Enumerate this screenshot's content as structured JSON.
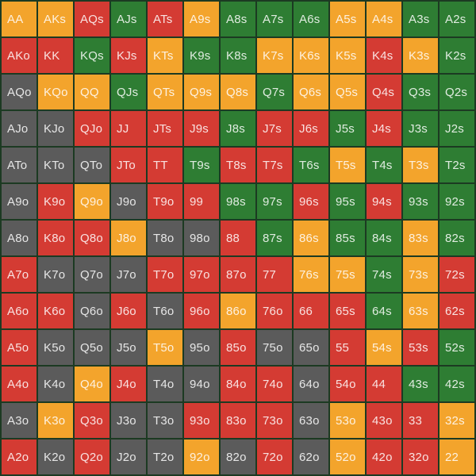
{
  "range_grid": {
    "type": "heatmap",
    "description": "13x13 poker starting-hand range matrix",
    "rows": 13,
    "cols": 13,
    "rank_order": [
      "A",
      "K",
      "Q",
      "J",
      "T",
      "9",
      "8",
      "7",
      "6",
      "5",
      "4",
      "3",
      "2"
    ],
    "palette": {
      "orange": "#F3A42C",
      "red": "#D43B33",
      "green": "#2E7D33",
      "gray": "#5B5B5B"
    },
    "background_color": "#1C3A22",
    "text_color": "rgba(255,255,255,0.85)",
    "cells": [
      [
        [
          "AA",
          "orange"
        ],
        [
          "AKs",
          "orange"
        ],
        [
          "AQs",
          "red"
        ],
        [
          "AJs",
          "green"
        ],
        [
          "ATs",
          "red"
        ],
        [
          "A9s",
          "orange"
        ],
        [
          "A8s",
          "green"
        ],
        [
          "A7s",
          "green"
        ],
        [
          "A6s",
          "green"
        ],
        [
          "A5s",
          "orange"
        ],
        [
          "A4s",
          "orange"
        ],
        [
          "A3s",
          "green"
        ],
        [
          "A2s",
          "green"
        ]
      ],
      [
        [
          "AKo",
          "red"
        ],
        [
          "KK",
          "red"
        ],
        [
          "KQs",
          "green"
        ],
        [
          "KJs",
          "red"
        ],
        [
          "KTs",
          "orange"
        ],
        [
          "K9s",
          "green"
        ],
        [
          "K8s",
          "green"
        ],
        [
          "K7s",
          "orange"
        ],
        [
          "K6s",
          "orange"
        ],
        [
          "K5s",
          "orange"
        ],
        [
          "K4s",
          "red"
        ],
        [
          "K3s",
          "orange"
        ],
        [
          "K2s",
          "green"
        ]
      ],
      [
        [
          "AQo",
          "gray"
        ],
        [
          "KQo",
          "orange"
        ],
        [
          "QQ",
          "orange"
        ],
        [
          "QJs",
          "green"
        ],
        [
          "QTs",
          "orange"
        ],
        [
          "Q9s",
          "orange"
        ],
        [
          "Q8s",
          "orange"
        ],
        [
          "Q7s",
          "green"
        ],
        [
          "Q6s",
          "orange"
        ],
        [
          "Q5s",
          "orange"
        ],
        [
          "Q4s",
          "red"
        ],
        [
          "Q3s",
          "green"
        ],
        [
          "Q2s",
          "green"
        ]
      ],
      [
        [
          "AJo",
          "gray"
        ],
        [
          "KJo",
          "gray"
        ],
        [
          "QJo",
          "red"
        ],
        [
          "JJ",
          "red"
        ],
        [
          "JTs",
          "red"
        ],
        [
          "J9s",
          "red"
        ],
        [
          "J8s",
          "green"
        ],
        [
          "J7s",
          "red"
        ],
        [
          "J6s",
          "red"
        ],
        [
          "J5s",
          "green"
        ],
        [
          "J4s",
          "red"
        ],
        [
          "J3s",
          "green"
        ],
        [
          "J2s",
          "green"
        ]
      ],
      [
        [
          "ATo",
          "gray"
        ],
        [
          "KTo",
          "gray"
        ],
        [
          "QTo",
          "gray"
        ],
        [
          "JTo",
          "red"
        ],
        [
          "TT",
          "red"
        ],
        [
          "T9s",
          "green"
        ],
        [
          "T8s",
          "red"
        ],
        [
          "T7s",
          "red"
        ],
        [
          "T6s",
          "green"
        ],
        [
          "T5s",
          "orange"
        ],
        [
          "T4s",
          "green"
        ],
        [
          "T3s",
          "orange"
        ],
        [
          "T2s",
          "green"
        ]
      ],
      [
        [
          "A9o",
          "gray"
        ],
        [
          "K9o",
          "red"
        ],
        [
          "Q9o",
          "orange"
        ],
        [
          "J9o",
          "gray"
        ],
        [
          "T9o",
          "red"
        ],
        [
          "99",
          "red"
        ],
        [
          "98s",
          "green"
        ],
        [
          "97s",
          "green"
        ],
        [
          "96s",
          "red"
        ],
        [
          "95s",
          "green"
        ],
        [
          "94s",
          "red"
        ],
        [
          "93s",
          "green"
        ],
        [
          "92s",
          "green"
        ]
      ],
      [
        [
          "A8o",
          "gray"
        ],
        [
          "K8o",
          "red"
        ],
        [
          "Q8o",
          "red"
        ],
        [
          "J8o",
          "orange"
        ],
        [
          "T8o",
          "gray"
        ],
        [
          "98o",
          "gray"
        ],
        [
          "88",
          "red"
        ],
        [
          "87s",
          "green"
        ],
        [
          "86s",
          "orange"
        ],
        [
          "85s",
          "green"
        ],
        [
          "84s",
          "green"
        ],
        [
          "83s",
          "orange"
        ],
        [
          "82s",
          "green"
        ]
      ],
      [
        [
          "A7o",
          "red"
        ],
        [
          "K7o",
          "gray"
        ],
        [
          "Q7o",
          "gray"
        ],
        [
          "J7o",
          "gray"
        ],
        [
          "T7o",
          "red"
        ],
        [
          "97o",
          "red"
        ],
        [
          "87o",
          "red"
        ],
        [
          "77",
          "red"
        ],
        [
          "76s",
          "orange"
        ],
        [
          "75s",
          "orange"
        ],
        [
          "74s",
          "green"
        ],
        [
          "73s",
          "orange"
        ],
        [
          "72s",
          "red"
        ]
      ],
      [
        [
          "A6o",
          "red"
        ],
        [
          "K6o",
          "red"
        ],
        [
          "Q6o",
          "gray"
        ],
        [
          "J6o",
          "red"
        ],
        [
          "T6o",
          "gray"
        ],
        [
          "96o",
          "red"
        ],
        [
          "86o",
          "orange"
        ],
        [
          "76o",
          "red"
        ],
        [
          "66",
          "red"
        ],
        [
          "65s",
          "red"
        ],
        [
          "64s",
          "green"
        ],
        [
          "63s",
          "orange"
        ],
        [
          "62s",
          "red"
        ]
      ],
      [
        [
          "A5o",
          "red"
        ],
        [
          "K5o",
          "gray"
        ],
        [
          "Q5o",
          "gray"
        ],
        [
          "J5o",
          "gray"
        ],
        [
          "T5o",
          "orange"
        ],
        [
          "95o",
          "gray"
        ],
        [
          "85o",
          "red"
        ],
        [
          "75o",
          "gray"
        ],
        [
          "65o",
          "gray"
        ],
        [
          "55",
          "red"
        ],
        [
          "54s",
          "orange"
        ],
        [
          "53s",
          "red"
        ],
        [
          "52s",
          "green"
        ]
      ],
      [
        [
          "A4o",
          "red"
        ],
        [
          "K4o",
          "gray"
        ],
        [
          "Q4o",
          "orange"
        ],
        [
          "J4o",
          "red"
        ],
        [
          "T4o",
          "gray"
        ],
        [
          "94o",
          "gray"
        ],
        [
          "84o",
          "red"
        ],
        [
          "74o",
          "red"
        ],
        [
          "64o",
          "gray"
        ],
        [
          "54o",
          "red"
        ],
        [
          "44",
          "red"
        ],
        [
          "43s",
          "green"
        ],
        [
          "42s",
          "green"
        ]
      ],
      [
        [
          "A3o",
          "gray"
        ],
        [
          "K3o",
          "orange"
        ],
        [
          "Q3o",
          "red"
        ],
        [
          "J3o",
          "gray"
        ],
        [
          "T3o",
          "gray"
        ],
        [
          "93o",
          "red"
        ],
        [
          "83o",
          "red"
        ],
        [
          "73o",
          "red"
        ],
        [
          "63o",
          "gray"
        ],
        [
          "53o",
          "orange"
        ],
        [
          "43o",
          "red"
        ],
        [
          "33",
          "red"
        ],
        [
          "32s",
          "orange"
        ]
      ],
      [
        [
          "A2o",
          "red"
        ],
        [
          "K2o",
          "gray"
        ],
        [
          "Q2o",
          "red"
        ],
        [
          "J2o",
          "gray"
        ],
        [
          "T2o",
          "gray"
        ],
        [
          "92o",
          "orange"
        ],
        [
          "82o",
          "gray"
        ],
        [
          "72o",
          "red"
        ],
        [
          "62o",
          "gray"
        ],
        [
          "52o",
          "orange"
        ],
        [
          "42o",
          "red"
        ],
        [
          "32o",
          "red"
        ],
        [
          "22",
          "orange"
        ]
      ]
    ]
  }
}
